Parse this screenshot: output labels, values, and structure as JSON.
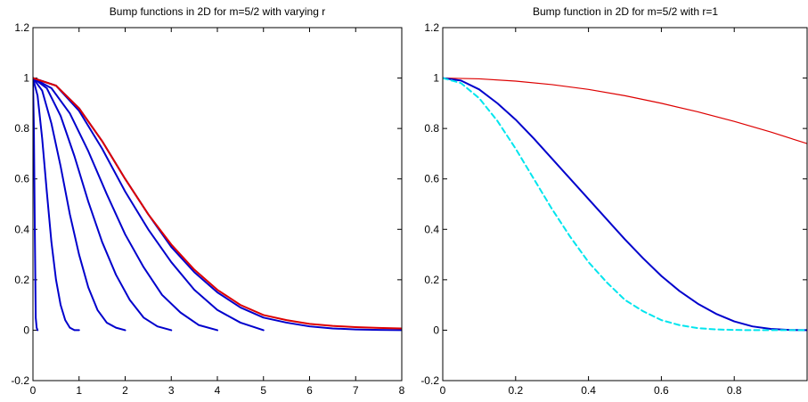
{
  "chart_data": [
    {
      "type": "line",
      "title": "Bump functions in 2D for m=5/2 with varying r",
      "xlabel": "",
      "ylabel": "",
      "xlim": [
        0,
        8
      ],
      "ylim": [
        -0.2,
        1.2
      ],
      "xticks": [
        "0",
        "1",
        "2",
        "3",
        "4",
        "5",
        "6",
        "7",
        "8"
      ],
      "yticks": [
        "-0.2",
        "0",
        "0.2",
        "0.4",
        "0.6",
        "0.8",
        "1",
        "1.2"
      ],
      "grid": false,
      "legend": "none",
      "series": [
        {
          "color": "#0000cc",
          "style": "solid",
          "x": [
            0,
            0.02,
            0.04,
            0.06,
            0.08,
            0.1
          ],
          "y": [
            1.0,
            0.8,
            0.4,
            0.05,
            0.01,
            0.0
          ]
        },
        {
          "color": "#0000cc",
          "style": "solid",
          "x": [
            0,
            0.1,
            0.2,
            0.3,
            0.4,
            0.5,
            0.6,
            0.7,
            0.8,
            0.9,
            1.0
          ],
          "y": [
            1.0,
            0.93,
            0.76,
            0.55,
            0.35,
            0.2,
            0.1,
            0.04,
            0.01,
            0.0,
            0.0
          ]
        },
        {
          "color": "#0000cc",
          "style": "solid",
          "x": [
            0,
            0.2,
            0.4,
            0.6,
            0.8,
            1.0,
            1.2,
            1.4,
            1.6,
            1.8,
            2.0
          ],
          "y": [
            1.0,
            0.95,
            0.82,
            0.65,
            0.46,
            0.3,
            0.17,
            0.08,
            0.03,
            0.01,
            0.0
          ]
        },
        {
          "color": "#0000cc",
          "style": "solid",
          "x": [
            0,
            0.3,
            0.6,
            0.9,
            1.2,
            1.5,
            1.8,
            2.1,
            2.4,
            2.7,
            3.0
          ],
          "y": [
            1.0,
            0.96,
            0.85,
            0.69,
            0.51,
            0.35,
            0.22,
            0.12,
            0.05,
            0.015,
            0.0
          ]
        },
        {
          "color": "#0000cc",
          "style": "solid",
          "x": [
            0,
            0.4,
            0.8,
            1.2,
            1.6,
            2.0,
            2.4,
            2.8,
            3.2,
            3.6,
            4.0
          ],
          "y": [
            1.0,
            0.96,
            0.86,
            0.71,
            0.54,
            0.38,
            0.25,
            0.14,
            0.07,
            0.02,
            0.0
          ]
        },
        {
          "color": "#0000cc",
          "style": "solid",
          "x": [
            0,
            0.5,
            1.0,
            1.5,
            2.0,
            2.5,
            3.0,
            3.5,
            4.0,
            4.5,
            5.0
          ],
          "y": [
            1.0,
            0.97,
            0.87,
            0.72,
            0.55,
            0.4,
            0.27,
            0.16,
            0.08,
            0.03,
            0.0
          ]
        },
        {
          "color": "#0000cc",
          "style": "solid",
          "x": [
            0,
            0.5,
            1.0,
            1.5,
            2.0,
            2.5,
            3.0,
            3.5,
            4.0,
            4.5,
            5.0,
            5.5,
            6.0,
            6.5,
            7.0,
            7.5,
            8.0
          ],
          "y": [
            1.0,
            0.97,
            0.88,
            0.75,
            0.6,
            0.46,
            0.33,
            0.23,
            0.15,
            0.09,
            0.05,
            0.03,
            0.015,
            0.007,
            0.003,
            0.001,
            0.0
          ]
        },
        {
          "color": "#dd0000",
          "style": "solid",
          "x": [
            0,
            0.5,
            1.0,
            1.5,
            2.0,
            2.5,
            3.0,
            3.5,
            4.0,
            4.5,
            5.0,
            5.5,
            6.0,
            6.5,
            7.0,
            7.5,
            8.0
          ],
          "y": [
            1.0,
            0.97,
            0.88,
            0.75,
            0.6,
            0.46,
            0.34,
            0.24,
            0.16,
            0.1,
            0.06,
            0.04,
            0.025,
            0.017,
            0.012,
            0.009,
            0.007
          ]
        }
      ]
    },
    {
      "type": "line",
      "title": "Bump function in 2D for m=5/2 with r=1",
      "xlabel": "",
      "ylabel": "",
      "xlim": [
        0,
        1
      ],
      "ylim": [
        -0.2,
        1.2
      ],
      "xticks": [
        "0",
        "0.2",
        "0.4",
        "0.6",
        "0.8"
      ],
      "yticks": [
        "-0.2",
        "0",
        "0.2",
        "0.4",
        "0.6",
        "0.8",
        "1",
        "1.2"
      ],
      "grid": false,
      "legend": "none",
      "series": [
        {
          "color": "#dd0000",
          "style": "solid",
          "x": [
            0,
            0.1,
            0.2,
            0.3,
            0.4,
            0.5,
            0.6,
            0.7,
            0.8,
            0.9,
            1.0
          ],
          "y": [
            1.0,
            0.997,
            0.988,
            0.974,
            0.955,
            0.93,
            0.9,
            0.866,
            0.828,
            0.786,
            0.74
          ]
        },
        {
          "color": "#0000cc",
          "style": "solid",
          "x": [
            0,
            0.05,
            0.1,
            0.15,
            0.2,
            0.25,
            0.3,
            0.35,
            0.4,
            0.45,
            0.5,
            0.55,
            0.6,
            0.65,
            0.7,
            0.75,
            0.8,
            0.85,
            0.9,
            0.95,
            1.0
          ],
          "y": [
            1.0,
            0.99,
            0.955,
            0.9,
            0.835,
            0.76,
            0.68,
            0.6,
            0.52,
            0.44,
            0.36,
            0.285,
            0.215,
            0.155,
            0.105,
            0.065,
            0.035,
            0.015,
            0.005,
            0.001,
            0.0
          ]
        },
        {
          "color": "#00e5ee",
          "style": "dashed",
          "x": [
            0,
            0.05,
            0.1,
            0.15,
            0.2,
            0.25,
            0.3,
            0.35,
            0.4,
            0.45,
            0.5,
            0.55,
            0.6,
            0.65,
            0.7,
            0.75,
            0.8,
            0.85,
            0.9,
            0.95,
            1.0
          ],
          "y": [
            1.0,
            0.98,
            0.92,
            0.83,
            0.72,
            0.6,
            0.48,
            0.37,
            0.27,
            0.19,
            0.12,
            0.075,
            0.04,
            0.02,
            0.008,
            0.003,
            0.001,
            0.0,
            0.0,
            0.0,
            0.0
          ]
        }
      ]
    }
  ]
}
